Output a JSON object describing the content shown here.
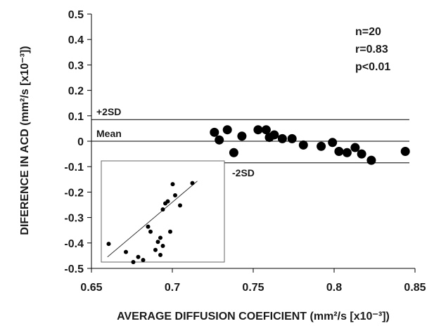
{
  "chart_data": {
    "type": "scatter",
    "title": "",
    "xlabel": "AVERAGE DIFFUSION COEFICIENT (mm²/s [x10⁻³])",
    "ylabel": "DIFERENCE IN ACD (mm²/s [x10⁻³])",
    "xlim": [
      0.65,
      0.85
    ],
    "ylim": [
      -0.5,
      0.5
    ],
    "x_ticks": [
      0.65,
      0.7,
      0.75,
      0.8,
      0.85
    ],
    "x_tick_labels": [
      "0.65",
      "0.7",
      "0.75",
      "0.8",
      "0.85"
    ],
    "y_ticks": [
      0.5,
      0.4,
      0.3,
      0.2,
      0.1,
      0,
      -0.1,
      -0.2,
      -0.3,
      -0.4,
      -0.5
    ],
    "y_tick_labels": [
      "0.5",
      "0.4",
      "0.3",
      "0.2",
      "0.1",
      "0",
      "-0.1",
      "-0.2",
      "-0.3",
      "-0.4",
      "-0.5"
    ],
    "grid": false,
    "reference_lines": [
      {
        "label": "+2SD",
        "y": 0.085
      },
      {
        "label": "Mean",
        "y": 0.0
      },
      {
        "label": "-2SD",
        "y": -0.085
      }
    ],
    "stats": [
      "n=20",
      "r=0.83",
      "p<0.01"
    ],
    "points": [
      {
        "x": 0.726,
        "y": 0.035
      },
      {
        "x": 0.729,
        "y": 0.005
      },
      {
        "x": 0.734,
        "y": 0.045
      },
      {
        "x": 0.738,
        "y": -0.045
      },
      {
        "x": 0.743,
        "y": 0.02
      },
      {
        "x": 0.753,
        "y": 0.045
      },
      {
        "x": 0.758,
        "y": 0.045
      },
      {
        "x": 0.76,
        "y": 0.015
      },
      {
        "x": 0.763,
        "y": 0.025
      },
      {
        "x": 0.768,
        "y": 0.01
      },
      {
        "x": 0.774,
        "y": 0.01
      },
      {
        "x": 0.781,
        "y": -0.015
      },
      {
        "x": 0.792,
        "y": -0.02
      },
      {
        "x": 0.799,
        "y": -0.005
      },
      {
        "x": 0.803,
        "y": -0.04
      },
      {
        "x": 0.808,
        "y": -0.045
      },
      {
        "x": 0.813,
        "y": -0.025
      },
      {
        "x": 0.817,
        "y": -0.05
      },
      {
        "x": 0.823,
        "y": -0.075
      },
      {
        "x": 0.844,
        "y": -0.04
      }
    ],
    "inset": {
      "type": "scatter",
      "points": [
        {
          "x": 0.06,
          "y": 0.18
        },
        {
          "x": 0.2,
          "y": 0.1
        },
        {
          "x": 0.26,
          "y": 0.0
        },
        {
          "x": 0.3,
          "y": 0.05
        },
        {
          "x": 0.34,
          "y": 0.02
        },
        {
          "x": 0.38,
          "y": 0.35
        },
        {
          "x": 0.4,
          "y": 0.3
        },
        {
          "x": 0.44,
          "y": 0.12
        },
        {
          "x": 0.46,
          "y": 0.2
        },
        {
          "x": 0.48,
          "y": 0.24
        },
        {
          "x": 0.48,
          "y": 0.07
        },
        {
          "x": 0.5,
          "y": 0.16
        },
        {
          "x": 0.5,
          "y": 0.52
        },
        {
          "x": 0.52,
          "y": 0.58
        },
        {
          "x": 0.54,
          "y": 0.6
        },
        {
          "x": 0.56,
          "y": 0.3
        },
        {
          "x": 0.58,
          "y": 0.77
        },
        {
          "x": 0.6,
          "y": 0.66
        },
        {
          "x": 0.64,
          "y": 0.56
        },
        {
          "x": 0.74,
          "y": 0.78
        }
      ],
      "fit_line": [
        {
          "x": 0.05,
          "y": 0.05
        },
        {
          "x": 0.78,
          "y": 0.8
        }
      ]
    }
  }
}
